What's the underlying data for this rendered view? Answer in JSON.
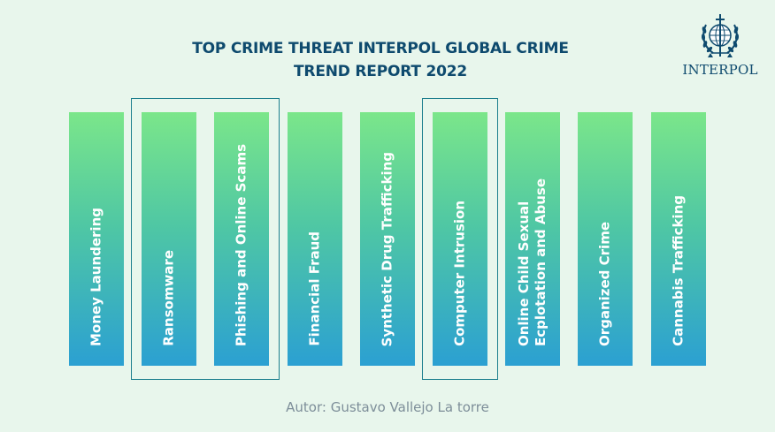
{
  "title": {
    "line1": "TOP CRIME THREAT INTERPOL GLOBAL CRIME",
    "line2": "TREND REPORT 2022"
  },
  "logo": {
    "text": "INTERPOL"
  },
  "threats": [
    "Money Laundering",
    "Ransomware",
    "Phishing and Online Scams",
    "Financial Fraud",
    "Synthetic Drug Trafficking",
    "Computer Intrusion",
    "Online Child Sexual\nEcplotation and Abuse",
    "Organized Crime",
    "Cannabis Trafficking"
  ],
  "highlighted_groups": [
    [
      1,
      2
    ],
    [
      5
    ]
  ],
  "author": "Autor: Gustavo Vallejo La torre",
  "colors": {
    "background": "#e8f6ec",
    "title": "#0e4a6e",
    "bar_top": "#7be68a",
    "bar_bottom": "#2ba0d2",
    "highlight_border": "#1d7f8e"
  }
}
